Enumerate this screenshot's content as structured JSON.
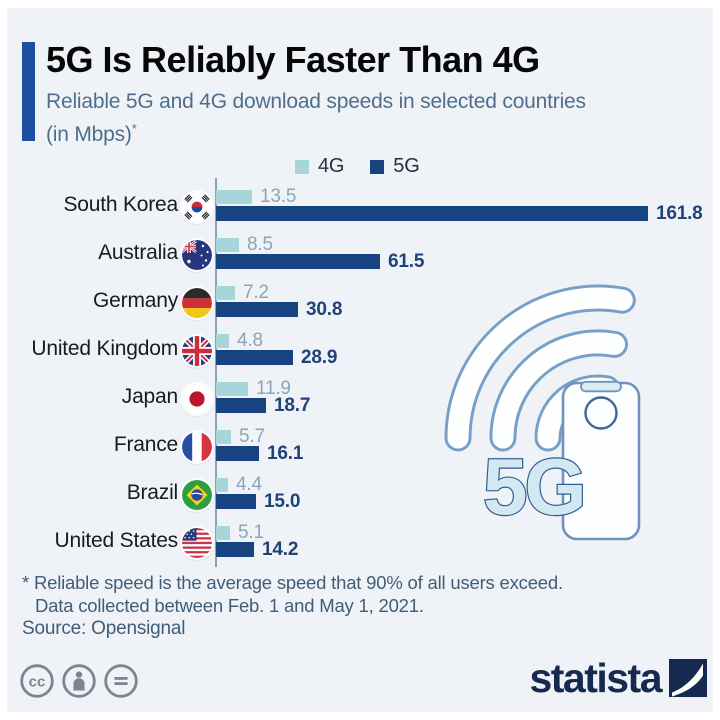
{
  "header": {
    "title": "5G Is Reliably Faster Than 4G",
    "subtitle": "Reliable 5G and 4G download speeds in selected countries",
    "subtitle2": "(in Mbps)",
    "footnote_marker": "*"
  },
  "legend": [
    {
      "label": "4G",
      "color": "#a6d6da"
    },
    {
      "label": "5G",
      "color": "#164480"
    }
  ],
  "chart_data": {
    "type": "bar",
    "orientation": "horizontal",
    "unit": "Mbps",
    "xlim": [
      0,
      170
    ],
    "grid": false,
    "legend_position": "top-center",
    "categories": [
      "South Korea",
      "Australia",
      "Germany",
      "United Kingdom",
      "Japan",
      "France",
      "Brazil",
      "United States"
    ],
    "flags": [
      "kr",
      "au",
      "de",
      "gb",
      "jp",
      "fr",
      "br",
      "us"
    ],
    "series": [
      {
        "name": "4G",
        "color": "#a6d6da",
        "values": [
          13.5,
          8.5,
          7.2,
          4.8,
          11.9,
          5.7,
          4.4,
          5.1
        ],
        "labels": [
          "13.5",
          "8.5",
          "7.2",
          "4.8",
          "11.9",
          "5.7",
          "4.4",
          "5.1"
        ]
      },
      {
        "name": "5G",
        "color": "#164480",
        "values": [
          161.8,
          61.5,
          30.8,
          28.9,
          18.7,
          16.1,
          15.0,
          14.2
        ],
        "labels": [
          "161.8",
          "61.5",
          "30.8",
          "28.9",
          "18.7",
          "16.1",
          "15.0",
          "14.2"
        ]
      }
    ]
  },
  "illustration": {
    "label": "5G",
    "icons": [
      "wifi-signal-icon",
      "smartphone-icon"
    ]
  },
  "footnote": {
    "line1": "* Reliable speed is the average speed that 90% of all users exceed.",
    "line2": "Data collected between Feb. 1 and May 1, 2021.",
    "source": "Source: Opensignal"
  },
  "footer": {
    "brand": "statista",
    "license_icons": [
      "creative-commons",
      "attribution",
      "no-derivatives"
    ]
  },
  "colors": {
    "background": "#eff3f7",
    "accent_bar": "#1d4f9e",
    "bar_4g": "#a6d6da",
    "bar_5g": "#164480",
    "value_4g_text": "#8ca4b9",
    "value_5g_text": "#1f4377",
    "subtitle_text": "#4f6e8e",
    "footnote_text": "#3f5d79",
    "brand_navy": "#152a4e",
    "axis_line": "#92a0ae"
  }
}
